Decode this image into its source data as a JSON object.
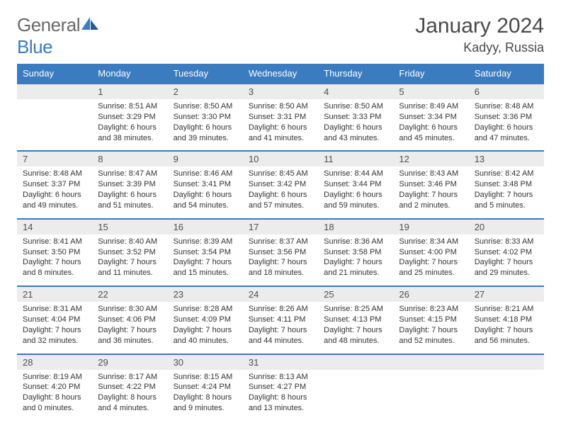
{
  "logo": {
    "text_gray": "General",
    "text_blue": "Blue",
    "icon_color": "#3b7bbf"
  },
  "title": "January 2024",
  "location": "Kadyy, Russia",
  "colors": {
    "header_bg": "#3b7bbf",
    "header_text": "#ffffff",
    "date_bg": "#ececec",
    "date_border": "#3b7bbf",
    "body_text": "#333333",
    "title_text": "#4a4a4a"
  },
  "day_names": [
    "Sunday",
    "Monday",
    "Tuesday",
    "Wednesday",
    "Thursday",
    "Friday",
    "Saturday"
  ],
  "weeks": [
    {
      "dates": [
        "",
        "1",
        "2",
        "3",
        "4",
        "5",
        "6"
      ],
      "cells": [
        "",
        "Sunrise: 8:51 AM\nSunset: 3:29 PM\nDaylight: 6 hours and 38 minutes.",
        "Sunrise: 8:50 AM\nSunset: 3:30 PM\nDaylight: 6 hours and 39 minutes.",
        "Sunrise: 8:50 AM\nSunset: 3:31 PM\nDaylight: 6 hours and 41 minutes.",
        "Sunrise: 8:50 AM\nSunset: 3:33 PM\nDaylight: 6 hours and 43 minutes.",
        "Sunrise: 8:49 AM\nSunset: 3:34 PM\nDaylight: 6 hours and 45 minutes.",
        "Sunrise: 8:48 AM\nSunset: 3:36 PM\nDaylight: 6 hours and 47 minutes."
      ]
    },
    {
      "dates": [
        "7",
        "8",
        "9",
        "10",
        "11",
        "12",
        "13"
      ],
      "cells": [
        "Sunrise: 8:48 AM\nSunset: 3:37 PM\nDaylight: 6 hours and 49 minutes.",
        "Sunrise: 8:47 AM\nSunset: 3:39 PM\nDaylight: 6 hours and 51 minutes.",
        "Sunrise: 8:46 AM\nSunset: 3:41 PM\nDaylight: 6 hours and 54 minutes.",
        "Sunrise: 8:45 AM\nSunset: 3:42 PM\nDaylight: 6 hours and 57 minutes.",
        "Sunrise: 8:44 AM\nSunset: 3:44 PM\nDaylight: 6 hours and 59 minutes.",
        "Sunrise: 8:43 AM\nSunset: 3:46 PM\nDaylight: 7 hours and 2 minutes.",
        "Sunrise: 8:42 AM\nSunset: 3:48 PM\nDaylight: 7 hours and 5 minutes."
      ]
    },
    {
      "dates": [
        "14",
        "15",
        "16",
        "17",
        "18",
        "19",
        "20"
      ],
      "cells": [
        "Sunrise: 8:41 AM\nSunset: 3:50 PM\nDaylight: 7 hours and 8 minutes.",
        "Sunrise: 8:40 AM\nSunset: 3:52 PM\nDaylight: 7 hours and 11 minutes.",
        "Sunrise: 8:39 AM\nSunset: 3:54 PM\nDaylight: 7 hours and 15 minutes.",
        "Sunrise: 8:37 AM\nSunset: 3:56 PM\nDaylight: 7 hours and 18 minutes.",
        "Sunrise: 8:36 AM\nSunset: 3:58 PM\nDaylight: 7 hours and 21 minutes.",
        "Sunrise: 8:34 AM\nSunset: 4:00 PM\nDaylight: 7 hours and 25 minutes.",
        "Sunrise: 8:33 AM\nSunset: 4:02 PM\nDaylight: 7 hours and 29 minutes."
      ]
    },
    {
      "dates": [
        "21",
        "22",
        "23",
        "24",
        "25",
        "26",
        "27"
      ],
      "cells": [
        "Sunrise: 8:31 AM\nSunset: 4:04 PM\nDaylight: 7 hours and 32 minutes.",
        "Sunrise: 8:30 AM\nSunset: 4:06 PM\nDaylight: 7 hours and 36 minutes.",
        "Sunrise: 8:28 AM\nSunset: 4:09 PM\nDaylight: 7 hours and 40 minutes.",
        "Sunrise: 8:26 AM\nSunset: 4:11 PM\nDaylight: 7 hours and 44 minutes.",
        "Sunrise: 8:25 AM\nSunset: 4:13 PM\nDaylight: 7 hours and 48 minutes.",
        "Sunrise: 8:23 AM\nSunset: 4:15 PM\nDaylight: 7 hours and 52 minutes.",
        "Sunrise: 8:21 AM\nSunset: 4:18 PM\nDaylight: 7 hours and 56 minutes."
      ]
    },
    {
      "dates": [
        "28",
        "29",
        "30",
        "31",
        "",
        "",
        ""
      ],
      "cells": [
        "Sunrise: 8:19 AM\nSunset: 4:20 PM\nDaylight: 8 hours and 0 minutes.",
        "Sunrise: 8:17 AM\nSunset: 4:22 PM\nDaylight: 8 hours and 4 minutes.",
        "Sunrise: 8:15 AM\nSunset: 4:24 PM\nDaylight: 8 hours and 9 minutes.",
        "Sunrise: 8:13 AM\nSunset: 4:27 PM\nDaylight: 8 hours and 13 minutes.",
        "",
        "",
        ""
      ]
    }
  ]
}
